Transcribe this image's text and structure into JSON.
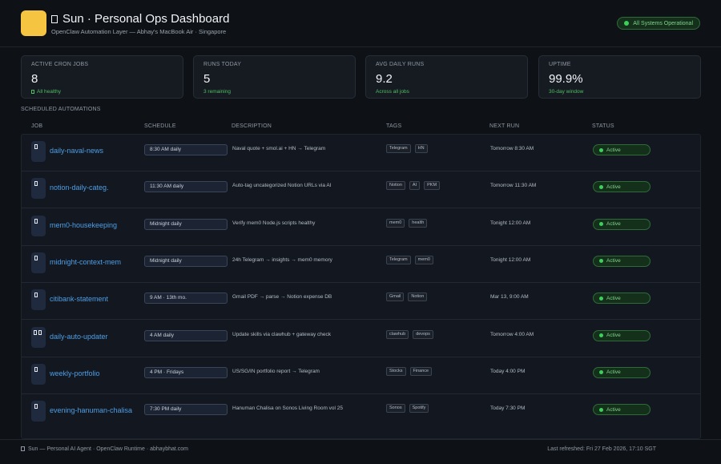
{
  "header": {
    "title": "Sun · Personal Ops Dashboard",
    "subtitle": "OpenClaw Automation Layer — Abhay's MacBook Air · Singapore",
    "system_status": "All Systems Operational"
  },
  "colors": {
    "accent_logo": "#f5c542",
    "link": "#4d9ee6",
    "ok": "#3ccf5a"
  },
  "stats": [
    {
      "label": "ACTIVE CRON JOBS",
      "value": "8",
      "note": "All healthy"
    },
    {
      "label": "RUNS TODAY",
      "value": "5",
      "note": "3 remaining"
    },
    {
      "label": "AVG DAILY RUNS",
      "value": "9.2",
      "note": "Across all jobs"
    },
    {
      "label": "UPTIME",
      "value": "99.9%",
      "note": "30-day window"
    }
  ],
  "section_title": "SCHEDULED AUTOMATIONS",
  "table": {
    "headers": {
      "job": "JOB",
      "schedule": "SCHEDULE",
      "description": "DESCRIPTION",
      "tags": "TAGS",
      "next_run": "NEXT RUN",
      "status": "STATUS"
    },
    "rows": [
      {
        "icon": "doc-icon",
        "name": "daily-naval-news",
        "schedule": "8:30 AM daily",
        "description": "Naval quote + smol.ai + HN → Telegram",
        "tags": [
          "Telegram",
          "HN"
        ],
        "next_run": "Tomorrow 8:30 AM",
        "status": "Active"
      },
      {
        "icon": "doc-icon",
        "name": "notion-daily-categ.",
        "schedule": "11:30 AM daily",
        "description": "Auto-tag uncategorized Notion URLs via AI",
        "tags": [
          "Notion",
          "AI",
          "PKM"
        ],
        "next_run": "Tomorrow 11:30 AM",
        "status": "Active"
      },
      {
        "icon": "doc-icon",
        "name": "mem0-housekeeping",
        "schedule": "Midnight daily",
        "description": "Verify mem0 Node.js scripts healthy",
        "tags": [
          "mem0",
          "health"
        ],
        "next_run": "Tonight 12:00 AM",
        "status": "Active"
      },
      {
        "icon": "doc-icon",
        "name": "midnight-context-mem",
        "schedule": "Midnight daily",
        "description": "24h Telegram → insights → mem0 memory",
        "tags": [
          "Telegram",
          "mem0"
        ],
        "next_run": "Tonight 12:00 AM",
        "status": "Active"
      },
      {
        "icon": "doc-icon",
        "name": "citibank-statement",
        "schedule": "9 AM · 13th mo.",
        "description": "Gmail PDF → parse → Notion expense DB",
        "tags": [
          "Gmail",
          "Notion"
        ],
        "next_run": "Mar 13, 9:00 AM",
        "status": "Active"
      },
      {
        "icon": "refresh-icon",
        "name": "daily-auto-updater",
        "schedule": "4 AM daily",
        "description": "Update skills via clawhub + gateway check",
        "tags": [
          "clawhub",
          "devops"
        ],
        "next_run": "Tomorrow 4:00 AM",
        "status": "Active"
      },
      {
        "icon": "doc-icon",
        "name": "weekly-portfolio",
        "schedule": "4 PM · Fridays",
        "description": "US/SG/IN portfolio report → Telegram",
        "tags": [
          "Stocks",
          "Finance"
        ],
        "next_run": "Today 4:00 PM",
        "status": "Active"
      },
      {
        "icon": "doc-icon",
        "name": "evening-hanuman-chalisa",
        "schedule": "7:30 PM daily",
        "description": "Hanuman Chalisa on Sonos Living Room vol 25",
        "tags": [
          "Sonos",
          "Spotify"
        ],
        "next_run": "Today 7:30 PM",
        "status": "Active"
      }
    ]
  },
  "footer": {
    "left": "Sun — Personal AI Agent · OpenClaw Runtime · abhaybhat.com",
    "right": "Last refreshed: Fri 27 Feb 2026, 17:10 SGT"
  }
}
